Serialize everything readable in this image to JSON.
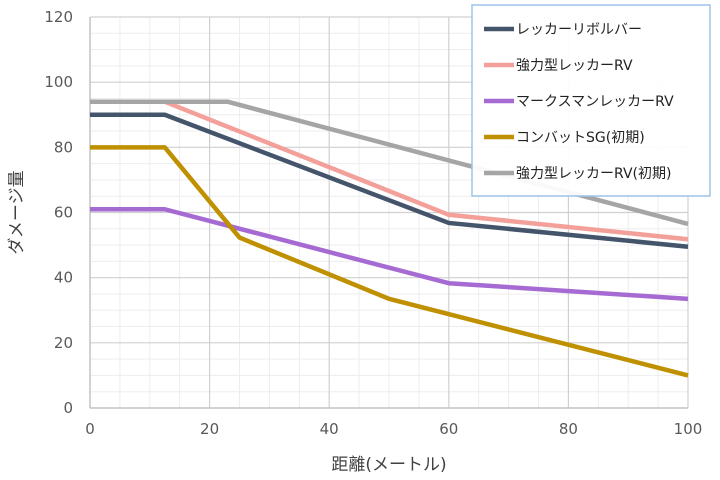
{
  "chart_data": {
    "type": "line",
    "title": "",
    "xlabel": "距離(メートル)",
    "ylabel": "ダメージ量",
    "xlim": [
      0,
      100
    ],
    "ylim": [
      0,
      120
    ],
    "x_ticks": [
      "0",
      "20",
      "40",
      "60",
      "80",
      "100"
    ],
    "y_ticks": [
      "0",
      "20",
      "40",
      "60",
      "80",
      "100",
      "120"
    ],
    "grid": true,
    "legend_position": "top-right",
    "series": [
      {
        "name": "レッカーリボルバー",
        "color": "#44546a",
        "points": [
          [
            0,
            90
          ],
          [
            12.5,
            90
          ],
          [
            60,
            56.8
          ],
          [
            100,
            49.5
          ]
        ]
      },
      {
        "name": "強力型レッカーRV",
        "color": "#f4a09a",
        "points": [
          [
            0,
            94
          ],
          [
            12.5,
            94
          ],
          [
            60,
            59.3
          ],
          [
            100,
            51.8
          ]
        ]
      },
      {
        "name": "マークスマンレッカーRV",
        "color": "#a66bd3",
        "points": [
          [
            0,
            61
          ],
          [
            12.5,
            61
          ],
          [
            60,
            38.3
          ],
          [
            100,
            33.5
          ]
        ]
      },
      {
        "name": "コンバットSG(初期)",
        "color": "#bf9000",
        "points": [
          [
            0,
            80
          ],
          [
            12.5,
            80
          ],
          [
            25,
            52.3
          ],
          [
            50,
            33.5
          ],
          [
            100,
            10
          ]
        ]
      },
      {
        "name": "強力型レッカーRV(初期)",
        "color": "#a5a5a5",
        "points": [
          [
            0,
            94
          ],
          [
            23,
            94
          ],
          [
            100,
            56.5
          ]
        ]
      }
    ]
  }
}
